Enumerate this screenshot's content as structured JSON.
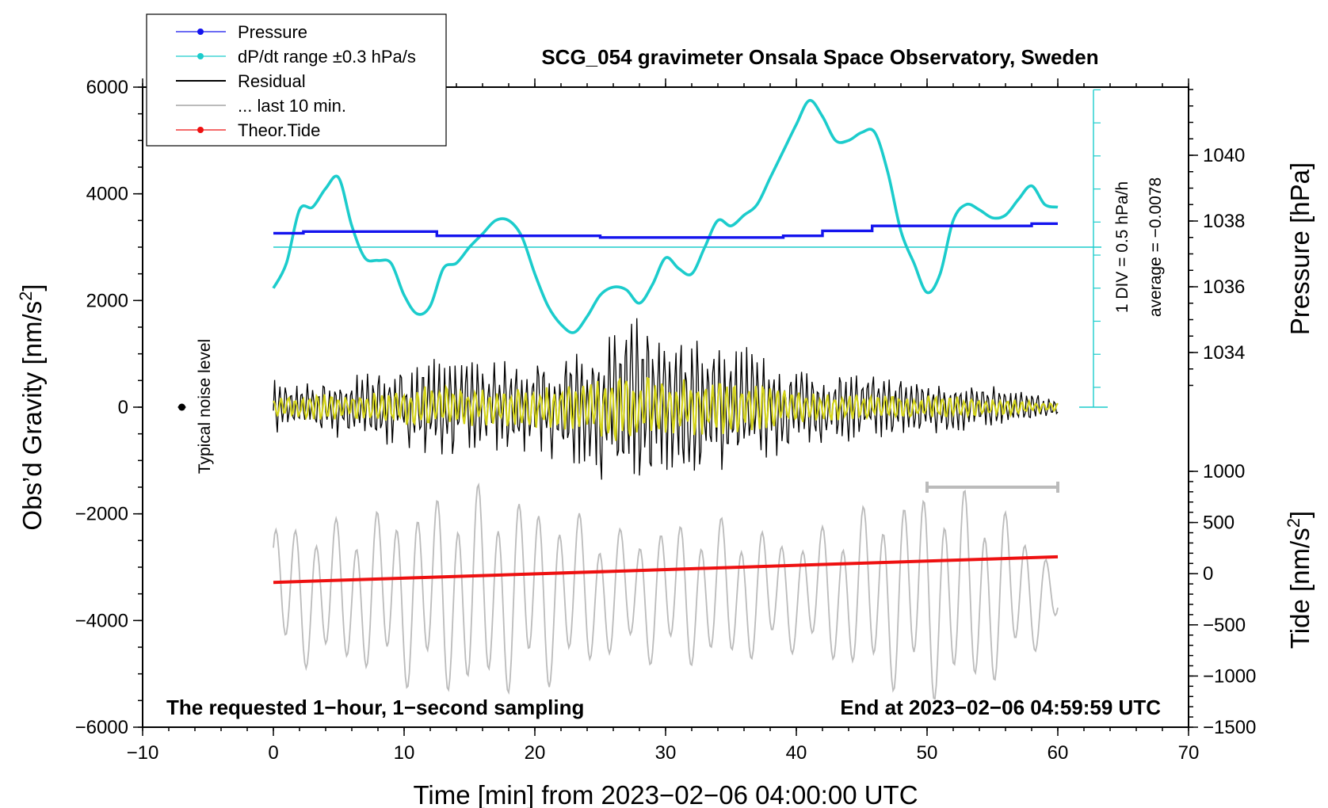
{
  "chart_data": {
    "type": "line",
    "title": "SCG_054 gravimeter Onsala Space Observatory, Sweden",
    "xlabel": "Time [min] from 2023−02−06 04:00:00 UTC",
    "ylabel_left": "Obs’d Gravity [nm/s²]",
    "ylabel_left_base": "Obs’d Gravity [nm/s",
    "ylabel_right_pressure": "Pressure [hPa]",
    "ylabel_right_tide": "Tide [nm/s²]",
    "ylabel_right_tide_base": "Tide [nm/s",
    "unit_sup": "2",
    "unit_close": "]",
    "xlim": [
      -10,
      70
    ],
    "ylim_gravity": [
      -6000,
      6000
    ],
    "ylim_tide": [
      -1500,
      1000
    ],
    "pressure_range": [
      1033.0,
      1042.0
    ],
    "x_ticks": [
      {
        "v": -10,
        "label": "−10"
      },
      {
        "v": 0,
        "label": "0"
      },
      {
        "v": 10,
        "label": "10"
      },
      {
        "v": 20,
        "label": "20"
      },
      {
        "v": 30,
        "label": "30"
      },
      {
        "v": 40,
        "label": "40"
      },
      {
        "v": 50,
        "label": "50"
      },
      {
        "v": 60,
        "label": "60"
      },
      {
        "v": 70,
        "label": "70"
      }
    ],
    "y_ticks_gravity": [
      {
        "v": 6000,
        "label": "6000"
      },
      {
        "v": 4000,
        "label": "4000"
      },
      {
        "v": 2000,
        "label": "2000"
      },
      {
        "v": 0,
        "label": "0"
      },
      {
        "v": -2000,
        "label": "−2000"
      },
      {
        "v": -4000,
        "label": "−4000"
      },
      {
        "v": -6000,
        "label": "−6000"
      }
    ],
    "y_ticks_pressure": [
      {
        "v": 1040,
        "label": "1040"
      },
      {
        "v": 1038,
        "label": "1038"
      },
      {
        "v": 1036,
        "label": "1036"
      },
      {
        "v": 1034,
        "label": "1034"
      }
    ],
    "y_ticks_tide": [
      {
        "v": 1000,
        "label": "1000"
      },
      {
        "v": 500,
        "label": "500"
      },
      {
        "v": 0,
        "label": "0"
      },
      {
        "v": -500,
        "label": "−500"
      },
      {
        "v": -1000,
        "label": "−1000"
      },
      {
        "v": -1500,
        "label": "−1500"
      }
    ],
    "legend": [
      {
        "label": "Pressure",
        "color": "#1414ee",
        "marker": true
      },
      {
        "label": "dP/dt range ±0.3 hPa/s",
        "color": "#1ccccc",
        "marker": true
      },
      {
        "label": "Residual",
        "color": "#000000",
        "marker": false
      },
      {
        "label": "... last 10 min.",
        "color": "#bbbbbb",
        "marker": false
      },
      {
        "label": "Theor.Tide",
        "color": "#ee1111",
        "marker": true
      }
    ],
    "annotations": {
      "noise_label": "Typical noise level",
      "div_label": "1 DIV = 0.5 hPa/h",
      "average_label": "average = −0.0078",
      "footer_left": "The requested 1−hour, 1−second sampling",
      "footer_right": "End at 2023−02−06 04:59:59 UTC"
    },
    "noise_point": {
      "x": -7,
      "y": 0
    },
    "last10_window_min": [
      50,
      60
    ],
    "dpdt_zero_gravity": 3000,
    "series": [
      {
        "name": "Pressure",
        "color": "#1414ee",
        "units": "hPa",
        "steps": [
          [
            0,
            1037.63
          ],
          [
            2.3,
            1037.68
          ],
          [
            12.5,
            1037.55
          ],
          [
            25,
            1037.5
          ],
          [
            39,
            1037.55
          ],
          [
            42,
            1037.7
          ],
          [
            45.8,
            1037.85
          ],
          [
            58,
            1037.92
          ],
          [
            60,
            1037.92
          ]
        ]
      },
      {
        "name": "dP/dt range ±0.3 hPa/s",
        "color": "#1ccccc",
        "units": "gravity-axis nm/s²",
        "x": [
          0,
          1,
          2,
          3,
          4,
          5,
          6,
          7,
          8,
          9,
          10,
          11,
          12,
          13,
          14,
          15,
          16,
          17,
          18,
          19,
          20,
          21,
          22,
          23,
          24,
          25,
          26,
          27,
          28,
          29,
          30,
          31,
          32,
          33,
          34,
          35,
          36,
          37,
          38,
          39,
          40,
          41,
          42,
          43,
          44,
          45,
          46,
          47,
          48,
          49,
          50,
          51,
          52,
          53,
          54,
          55,
          56,
          57,
          58,
          59,
          60
        ],
        "y": [
          2230,
          2700,
          3700,
          3750,
          4100,
          4300,
          3400,
          2800,
          2750,
          2700,
          2100,
          1750,
          1900,
          2600,
          2700,
          3000,
          3250,
          3500,
          3500,
          3200,
          2500,
          1900,
          1550,
          1400,
          1700,
          2100,
          2250,
          2200,
          1950,
          2300,
          2800,
          2600,
          2500,
          3000,
          3500,
          3400,
          3600,
          3800,
          4300,
          4800,
          5300,
          5750,
          5450,
          5000,
          5000,
          5150,
          5150,
          4400,
          3300,
          2700,
          2150,
          2500,
          3500,
          3800,
          3700,
          3550,
          3600,
          3900,
          4150,
          3800,
          3750
        ]
      },
      {
        "name": "Residual",
        "color": "#000000",
        "units": "nm/s²",
        "sample_step_min": 0.1,
        "amplitude_envelope": {
          "x": [
            0,
            5,
            10,
            12,
            15,
            20,
            24,
            27,
            30,
            33,
            36,
            40,
            45,
            50,
            55,
            60
          ],
          "y": [
            450,
            500,
            650,
            900,
            750,
            800,
            1000,
            1500,
            1200,
            1100,
            1000,
            650,
            550,
            450,
            350,
            150
          ]
        }
      },
      {
        "name": "... last 10 min.",
        "color": "#bbbbbb",
        "units": "nm/s²",
        "sample_step_min": 0.1,
        "center_gravity": -3500,
        "amplitude_envelope": {
          "x": [
            0,
            5,
            10,
            15,
            20,
            27,
            30,
            35,
            40,
            45,
            50,
            55,
            60
          ],
          "y": [
            1300,
            1300,
            1600,
            1900,
            1700,
            1100,
            1300,
            1300,
            1000,
            1500,
            1900,
            1700,
            600
          ]
        }
      },
      {
        "name": "Theor.Tide",
        "color": "#ee1111",
        "units": "nm/s² (tide axis)",
        "x": [
          0,
          60
        ],
        "y": [
          -85,
          165
        ]
      }
    ]
  }
}
